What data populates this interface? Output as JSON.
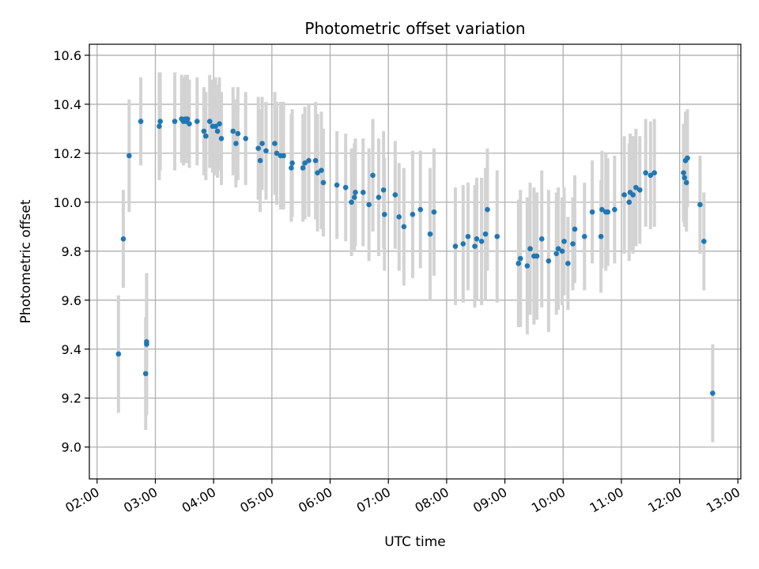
{
  "chart_data": {
    "type": "scatter",
    "title": "Photometric offset variation",
    "xlabel": "UTC time",
    "ylabel": "Photometric offset",
    "x_ticks": [
      "02:00",
      "03:00",
      "04:00",
      "05:00",
      "06:00",
      "07:00",
      "08:00",
      "09:00",
      "10:00",
      "11:00",
      "12:00",
      "13:00"
    ],
    "y_ticks": [
      "9.0",
      "9.2",
      "9.4",
      "9.6",
      "9.8",
      "10.0",
      "10.2",
      "10.4",
      "10.6"
    ],
    "xlim": [
      "01:52",
      "13:03"
    ],
    "ylim": [
      8.87,
      10.645
    ],
    "grid": true,
    "colors": {
      "points": "#1f77b4",
      "errorbars": "#d3d3d3",
      "grid": "#b0b0b0"
    },
    "series": [
      {
        "x": [
          "02:22",
          "02:27",
          "02:33",
          "02:45",
          "02:50",
          "02:51",
          "02:51",
          "03:04",
          "03:05",
          "03:20",
          "03:27",
          "03:29",
          "03:31",
          "03:32",
          "03:33",
          "03:35",
          "03:43",
          "03:50",
          "03:52",
          "03:56",
          "03:59",
          "04:02",
          "04:04",
          "04:06",
          "04:08",
          "04:20",
          "04:23",
          "04:25",
          "04:33",
          "04:46",
          "04:48",
          "04:50",
          "04:54",
          "05:03",
          "05:05",
          "05:09",
          "05:12",
          "05:20",
          "05:21",
          "05:32",
          "05:34",
          "05:38",
          "05:45",
          "05:47",
          "05:51",
          "05:53",
          "06:07",
          "06:16",
          "06:22",
          "06:25",
          "06:26",
          "06:34",
          "06:40",
          "06:44",
          "06:50",
          "06:55",
          "06:56",
          "07:07",
          "07:11",
          "07:16",
          "07:25",
          "07:33",
          "07:43",
          "07:47",
          "08:09",
          "08:17",
          "08:22",
          "08:29",
          "08:31",
          "08:36",
          "08:40",
          "08:42",
          "08:52",
          "09:14",
          "09:16",
          "09:23",
          "09:26",
          "09:30",
          "09:33",
          "09:38",
          "09:45",
          "09:53",
          "09:55",
          "09:59",
          "10:01",
          "10:05",
          "10:10",
          "10:12",
          "10:22",
          "10:30",
          "10:39",
          "10:40",
          "10:44",
          "10:46",
          "10:53",
          "11:03",
          "11:08",
          "11:09",
          "11:12",
          "11:15",
          "11:19",
          "11:25",
          "11:30",
          "11:34",
          "12:04",
          "12:05",
          "12:06",
          "12:07",
          "12:08",
          "12:21",
          "12:25",
          "12:34"
        ],
        "y": [
          9.38,
          9.85,
          10.19,
          10.33,
          9.3,
          9.42,
          9.43,
          10.31,
          10.33,
          10.33,
          10.34,
          10.33,
          10.34,
          10.33,
          10.34,
          10.32,
          10.33,
          10.29,
          10.27,
          10.33,
          10.31,
          10.31,
          10.29,
          10.32,
          10.26,
          10.29,
          10.24,
          10.28,
          10.26,
          10.22,
          10.17,
          10.24,
          10.21,
          10.24,
          10.2,
          10.19,
          10.19,
          10.14,
          10.16,
          10.14,
          10.16,
          10.17,
          10.17,
          10.12,
          10.13,
          10.08,
          10.07,
          10.06,
          10.0,
          10.02,
          10.04,
          10.04,
          9.99,
          10.11,
          10.02,
          10.05,
          9.95,
          10.03,
          9.94,
          9.9,
          9.95,
          9.97,
          9.87,
          9.96,
          9.82,
          9.83,
          9.86,
          9.82,
          9.85,
          9.84,
          9.87,
          9.97,
          9.86,
          9.75,
          9.77,
          9.74,
          9.81,
          9.78,
          9.78,
          9.85,
          9.76,
          9.79,
          9.81,
          9.8,
          9.84,
          9.75,
          9.83,
          9.89,
          9.86,
          9.96,
          9.86,
          9.97,
          9.96,
          9.96,
          9.97,
          10.03,
          10.0,
          10.04,
          10.03,
          10.06,
          10.05,
          10.12,
          10.11,
          10.12,
          10.12,
          10.1,
          10.17,
          10.08,
          10.18,
          9.99,
          9.84,
          9.22
        ],
        "err": [
          0.24,
          0.2,
          0.23,
          0.18,
          0.23,
          0.29,
          0.28,
          0.22,
          0.2,
          0.2,
          0.18,
          0.18,
          0.18,
          0.17,
          0.18,
          0.18,
          0.18,
          0.18,
          0.18,
          0.19,
          0.19,
          0.2,
          0.19,
          0.19,
          0.19,
          0.18,
          0.18,
          0.19,
          0.19,
          0.21,
          0.21,
          0.19,
          0.2,
          0.21,
          0.21,
          0.22,
          0.22,
          0.22,
          0.22,
          0.22,
          0.23,
          0.23,
          0.24,
          0.24,
          0.24,
          0.22,
          0.22,
          0.22,
          0.22,
          0.22,
          0.22,
          0.22,
          0.23,
          0.23,
          0.24,
          0.24,
          0.23,
          0.22,
          0.22,
          0.24,
          0.26,
          0.24,
          0.27,
          0.26,
          0.24,
          0.24,
          0.22,
          0.25,
          0.25,
          0.26,
          0.27,
          0.25,
          0.27,
          0.26,
          0.28,
          0.28,
          0.27,
          0.28,
          0.26,
          0.28,
          0.29,
          0.25,
          0.25,
          0.22,
          0.22,
          0.19,
          0.19,
          0.22,
          0.22,
          0.21,
          0.23,
          0.24,
          0.24,
          0.22,
          0.22,
          0.24,
          0.24,
          0.24,
          0.24,
          0.24,
          0.22,
          0.22,
          0.22,
          0.22,
          0.2,
          0.2,
          0.2,
          0.2,
          0.2,
          0.2,
          0.2,
          0.2
        ]
      }
    ]
  }
}
